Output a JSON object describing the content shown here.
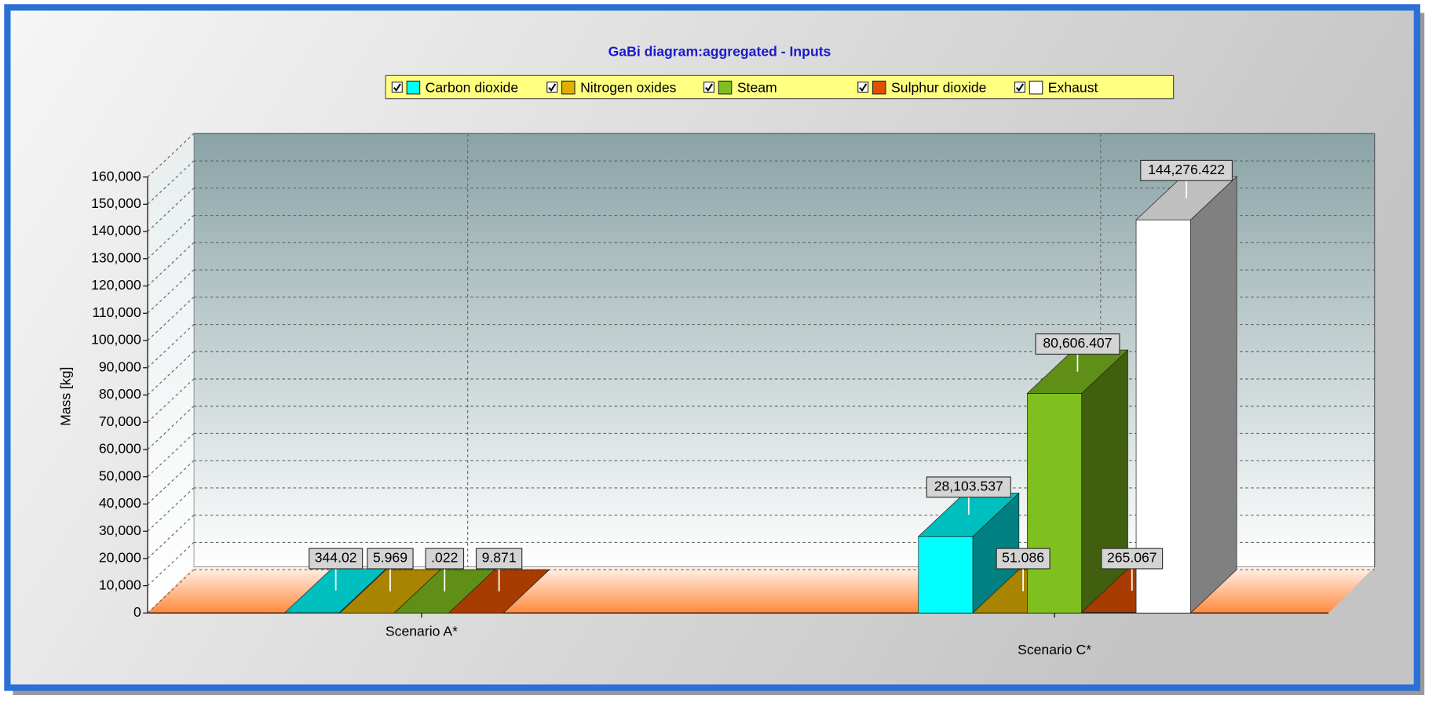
{
  "chart_data": {
    "type": "bar3d",
    "title": "GaBi diagram:aggregated - Inputs",
    "y_label": "Mass  [kg]",
    "categories": [
      "Scenario A*",
      "Scenario C*"
    ],
    "series": [
      {
        "name": "Carbon dioxide",
        "color": "#00ffff",
        "values": [
          344.02,
          28103.537
        ],
        "value_labels": [
          "344.02",
          "28,103.537"
        ]
      },
      {
        "name": "Nitrogen oxides",
        "color": "#e0b000",
        "values": [
          5.969,
          51.086
        ],
        "value_labels": [
          "5.969",
          "51.086"
        ]
      },
      {
        "name": "Steam",
        "color": "#7fbf1f",
        "values": [
          0.022,
          80606.407
        ],
        "value_labels": [
          ".022",
          "80,606.407"
        ]
      },
      {
        "name": "Sulphur dioxide",
        "color": "#e05000",
        "values": [
          9.871,
          265.067
        ],
        "value_labels": [
          "9.871",
          "265.067"
        ]
      },
      {
        "name": "Exhaust",
        "color": "#ffffff",
        "values": [
          null,
          144276.422
        ],
        "value_labels": [
          null,
          "144,276.422"
        ]
      }
    ],
    "ylim": [
      0,
      160000
    ],
    "yticks": [
      0,
      {
        "value": 10000,
        "label": "10,000"
      },
      {
        "value": 20000,
        "label": "20,000"
      },
      {
        "value": 30000,
        "label": "30,000"
      },
      {
        "value": 40000,
        "label": "40,000"
      },
      {
        "value": 50000,
        "label": "50,000"
      },
      {
        "value": 60000,
        "label": "60,000"
      },
      {
        "value": 70000,
        "label": "70,000"
      },
      {
        "value": 80000,
        "label": "80,000"
      },
      {
        "value": 90000,
        "label": "90,000"
      },
      {
        "value": 100000,
        "label": "100,000"
      },
      {
        "value": 110000,
        "label": "110,000"
      },
      {
        "value": 120000,
        "label": "120,000"
      },
      {
        "value": 130000,
        "label": "130,000"
      },
      {
        "value": 140000,
        "label": "140,000"
      },
      {
        "value": 150000,
        "label": "150,000"
      },
      {
        "value": 160000,
        "label": "160,000"
      }
    ],
    "grid": true,
    "legend": "top"
  }
}
